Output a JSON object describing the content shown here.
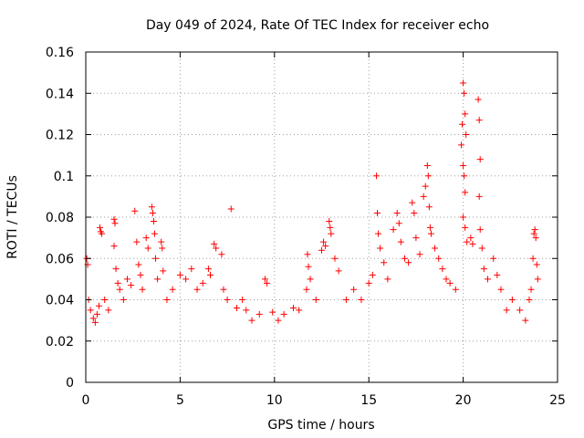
{
  "chart_data": {
    "type": "scatter",
    "title": "Day 049 of 2024, Rate Of TEC Index for receiver echo",
    "xlabel": "GPS time / hours",
    "ylabel": "ROTI / TECUs",
    "xlim": [
      0,
      25
    ],
    "ylim": [
      0,
      0.16
    ],
    "x_ticks": [
      0,
      5,
      10,
      15,
      20,
      25
    ],
    "x_tick_labels": [
      "0",
      "5",
      "10",
      "15",
      "20",
      "25"
    ],
    "y_ticks": [
      0,
      0.02,
      0.04,
      0.06,
      0.08,
      0.1,
      0.12,
      0.14,
      0.16
    ],
    "y_tick_labels": [
      "0",
      "0.02",
      "0.04",
      "0.06",
      "0.08",
      "0.1",
      "0.12",
      "0.14",
      "0.16"
    ],
    "grid": true,
    "marker": "plus",
    "series": [
      {
        "color": "#ff0000",
        "points": [
          [
            0.05,
            0.06
          ],
          [
            0.1,
            0.057
          ],
          [
            0.15,
            0.04
          ],
          [
            0.25,
            0.035
          ],
          [
            0.4,
            0.031
          ],
          [
            0.5,
            0.029
          ],
          [
            0.6,
            0.033
          ],
          [
            0.7,
            0.037
          ],
          [
            0.75,
            0.075
          ],
          [
            0.8,
            0.073
          ],
          [
            0.85,
            0.072
          ],
          [
            1.0,
            0.04
          ],
          [
            1.2,
            0.035
          ],
          [
            1.5,
            0.079
          ],
          [
            1.55,
            0.077
          ],
          [
            1.5,
            0.066
          ],
          [
            1.6,
            0.055
          ],
          [
            1.7,
            0.048
          ],
          [
            1.8,
            0.045
          ],
          [
            2.0,
            0.04
          ],
          [
            2.2,
            0.05
          ],
          [
            2.4,
            0.047
          ],
          [
            2.6,
            0.083
          ],
          [
            2.7,
            0.068
          ],
          [
            2.8,
            0.057
          ],
          [
            2.9,
            0.052
          ],
          [
            3.0,
            0.045
          ],
          [
            3.2,
            0.07
          ],
          [
            3.3,
            0.065
          ],
          [
            3.5,
            0.085
          ],
          [
            3.55,
            0.082
          ],
          [
            3.6,
            0.078
          ],
          [
            3.65,
            0.072
          ],
          [
            3.7,
            0.06
          ],
          [
            3.8,
            0.05
          ],
          [
            4.0,
            0.068
          ],
          [
            4.05,
            0.065
          ],
          [
            4.1,
            0.054
          ],
          [
            4.3,
            0.04
          ],
          [
            4.6,
            0.045
          ],
          [
            5.0,
            0.052
          ],
          [
            5.3,
            0.05
          ],
          [
            5.6,
            0.055
          ],
          [
            5.9,
            0.045
          ],
          [
            6.2,
            0.048
          ],
          [
            6.5,
            0.055
          ],
          [
            6.6,
            0.052
          ],
          [
            6.8,
            0.067
          ],
          [
            6.9,
            0.065
          ],
          [
            7.2,
            0.062
          ],
          [
            7.3,
            0.045
          ],
          [
            7.5,
            0.04
          ],
          [
            7.7,
            0.084
          ],
          [
            8.0,
            0.036
          ],
          [
            8.3,
            0.04
          ],
          [
            8.5,
            0.035
          ],
          [
            8.8,
            0.03
          ],
          [
            9.2,
            0.033
          ],
          [
            9.5,
            0.05
          ],
          [
            9.6,
            0.048
          ],
          [
            9.9,
            0.034
          ],
          [
            10.2,
            0.03
          ],
          [
            10.5,
            0.033
          ],
          [
            11.0,
            0.036
          ],
          [
            11.3,
            0.035
          ],
          [
            11.7,
            0.045
          ],
          [
            11.75,
            0.062
          ],
          [
            11.8,
            0.056
          ],
          [
            11.9,
            0.05
          ],
          [
            12.2,
            0.04
          ],
          [
            12.5,
            0.064
          ],
          [
            12.6,
            0.068
          ],
          [
            12.7,
            0.066
          ],
          [
            12.9,
            0.078
          ],
          [
            12.95,
            0.075
          ],
          [
            13.0,
            0.072
          ],
          [
            13.2,
            0.06
          ],
          [
            13.4,
            0.054
          ],
          [
            13.8,
            0.04
          ],
          [
            14.2,
            0.045
          ],
          [
            14.6,
            0.04
          ],
          [
            15.0,
            0.048
          ],
          [
            15.2,
            0.052
          ],
          [
            15.4,
            0.1
          ],
          [
            15.45,
            0.082
          ],
          [
            15.5,
            0.072
          ],
          [
            15.6,
            0.065
          ],
          [
            15.8,
            0.058
          ],
          [
            16.0,
            0.05
          ],
          [
            16.3,
            0.074
          ],
          [
            16.5,
            0.082
          ],
          [
            16.6,
            0.077
          ],
          [
            16.7,
            0.068
          ],
          [
            16.9,
            0.06
          ],
          [
            17.1,
            0.058
          ],
          [
            17.3,
            0.087
          ],
          [
            17.4,
            0.082
          ],
          [
            17.5,
            0.07
          ],
          [
            17.7,
            0.062
          ],
          [
            17.9,
            0.09
          ],
          [
            18.0,
            0.095
          ],
          [
            18.1,
            0.105
          ],
          [
            18.15,
            0.1
          ],
          [
            18.2,
            0.085
          ],
          [
            18.25,
            0.075
          ],
          [
            18.3,
            0.072
          ],
          [
            18.5,
            0.065
          ],
          [
            18.7,
            0.06
          ],
          [
            18.9,
            0.055
          ],
          [
            19.1,
            0.05
          ],
          [
            19.3,
            0.048
          ],
          [
            19.6,
            0.045
          ],
          [
            19.9,
            0.115
          ],
          [
            19.95,
            0.125
          ],
          [
            20.0,
            0.145
          ],
          [
            20.05,
            0.14
          ],
          [
            20.1,
            0.13
          ],
          [
            20.15,
            0.12
          ],
          [
            20.0,
            0.105
          ],
          [
            20.05,
            0.1
          ],
          [
            20.1,
            0.092
          ],
          [
            20.0,
            0.08
          ],
          [
            20.1,
            0.075
          ],
          [
            20.2,
            0.068
          ],
          [
            20.4,
            0.07
          ],
          [
            20.5,
            0.067
          ],
          [
            20.8,
            0.137
          ],
          [
            20.85,
            0.127
          ],
          [
            20.9,
            0.108
          ],
          [
            20.85,
            0.09
          ],
          [
            20.9,
            0.074
          ],
          [
            21.0,
            0.065
          ],
          [
            21.1,
            0.055
          ],
          [
            21.3,
            0.05
          ],
          [
            21.6,
            0.06
          ],
          [
            21.8,
            0.052
          ],
          [
            22.0,
            0.045
          ],
          [
            22.3,
            0.035
          ],
          [
            22.6,
            0.04
          ],
          [
            23.0,
            0.035
          ],
          [
            23.3,
            0.03
          ],
          [
            23.5,
            0.04
          ],
          [
            23.6,
            0.045
          ],
          [
            23.7,
            0.06
          ],
          [
            23.75,
            0.072
          ],
          [
            23.8,
            0.074
          ],
          [
            23.85,
            0.07
          ],
          [
            23.9,
            0.057
          ],
          [
            23.95,
            0.05
          ]
        ]
      }
    ]
  }
}
